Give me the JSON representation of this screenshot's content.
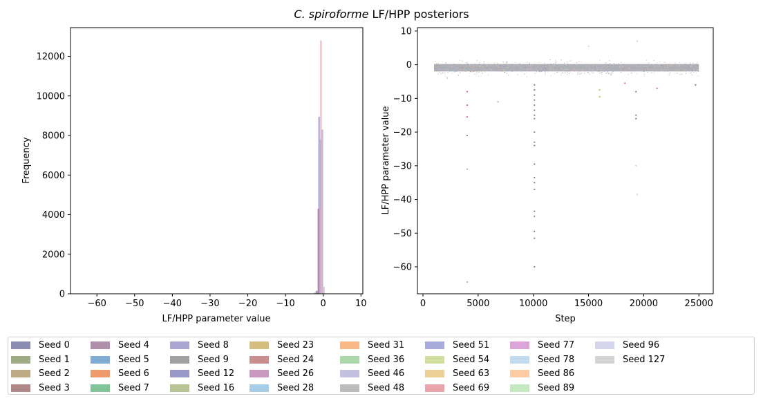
{
  "figure": {
    "title_italic": "C. spiroforme",
    "title_rest": " LF/HPP posteriors"
  },
  "chart_data": [
    {
      "type": "histogram",
      "xlabel": "LF/HPP parameter value",
      "ylabel": "Frequency",
      "xlim": [
        -67,
        10.5
      ],
      "ylim": [
        0,
        13450
      ],
      "xticks": [
        -60,
        -50,
        -40,
        -30,
        -20,
        -10,
        0,
        10
      ],
      "yticks": [
        0,
        2000,
        4000,
        6000,
        8000,
        10000,
        12000
      ],
      "grid": false,
      "bars": [
        {
          "x0": -2.0,
          "x1": -1.5,
          "value": 150,
          "color": "#5a5a8c"
        },
        {
          "x0": -1.5,
          "x1": -1.1,
          "value": 4300,
          "color": "#d04050"
        },
        {
          "x0": -1.3,
          "x1": -0.9,
          "value": 8950,
          "color": "#6a6ac0"
        },
        {
          "x0": -0.9,
          "x1": -0.5,
          "value": 7800,
          "color": "#9aa0d8"
        },
        {
          "x0": -0.8,
          "x1": -0.4,
          "value": 12800,
          "color": "#e88890"
        },
        {
          "x0": -0.4,
          "x1": 0.0,
          "value": 8300,
          "color": "#9a90c8"
        },
        {
          "x0": 0.0,
          "x1": 0.4,
          "value": 350,
          "color": "#c0a0c0"
        },
        {
          "x0": -2.4,
          "x1": -2.0,
          "value": 60,
          "color": "#c08080"
        }
      ]
    },
    {
      "type": "scatter",
      "xlabel": "Step",
      "ylabel": "LF/HPP parameter value",
      "xlim": [
        -500,
        26300
      ],
      "ylim": [
        -68,
        11
      ],
      "xticks": [
        0,
        5000,
        10000,
        15000,
        20000,
        25000
      ],
      "yticks": [
        10,
        0,
        -10,
        -20,
        -30,
        -40,
        -50,
        -60
      ],
      "grid": false,
      "band": {
        "x_start": 1000,
        "x_end": 25000,
        "y_center": -0.9,
        "y_half_width": 1.1
      },
      "outliers": [
        {
          "step": 4000,
          "value": -21,
          "color": "#5a5a8c"
        },
        {
          "step": 4000,
          "value": -31,
          "color": "#c08080"
        },
        {
          "step": 4000,
          "value": -64.5,
          "color": "#9a90c8"
        },
        {
          "step": 4000,
          "value": -15.5,
          "color": "#d04050"
        },
        {
          "step": 4000,
          "value": -12,
          "color": "#d04050"
        },
        {
          "step": 4000,
          "value": -8,
          "color": "#d04050"
        },
        {
          "step": 10100,
          "value": -60,
          "color": "#5a5a8c"
        },
        {
          "step": 10100,
          "value": -51.5,
          "color": "#5a5a8c"
        },
        {
          "step": 10100,
          "value": -49.5,
          "color": "#5a5a8c"
        },
        {
          "step": 10100,
          "value": -45,
          "color": "#5a5a8c"
        },
        {
          "step": 10100,
          "value": -43.5,
          "color": "#5a5a8c"
        },
        {
          "step": 10100,
          "value": -37,
          "color": "#5a5a8c"
        },
        {
          "step": 10100,
          "value": -35,
          "color": "#5a5a8c"
        },
        {
          "step": 10100,
          "value": -33.5,
          "color": "#5a5a8c"
        },
        {
          "step": 10100,
          "value": -29.5,
          "color": "#5a5a8c"
        },
        {
          "step": 10100,
          "value": -24,
          "color": "#5a5a8c"
        },
        {
          "step": 10100,
          "value": -23,
          "color": "#5a5a8c"
        },
        {
          "step": 10100,
          "value": -20,
          "color": "#5a5a8c"
        },
        {
          "step": 10100,
          "value": -16,
          "color": "#5a5a8c"
        },
        {
          "step": 10100,
          "value": -15,
          "color": "#5a5a8c"
        },
        {
          "step": 10100,
          "value": -13.5,
          "color": "#5a5a8c"
        },
        {
          "step": 10100,
          "value": -12,
          "color": "#5a5a8c"
        },
        {
          "step": 10100,
          "value": -10.5,
          "color": "#5a5a8c"
        },
        {
          "step": 10100,
          "value": -9,
          "color": "#5a5a8c"
        },
        {
          "step": 10100,
          "value": -7.5,
          "color": "#5a5a8c"
        },
        {
          "step": 10100,
          "value": -6,
          "color": "#5a5a8c"
        },
        {
          "step": 6800,
          "value": -11,
          "color": "#9a90c8"
        },
        {
          "step": 19300,
          "value": -15,
          "color": "#5a5a8c"
        },
        {
          "step": 19300,
          "value": -16,
          "color": "#5a5a8c"
        },
        {
          "step": 19300,
          "value": -8,
          "color": "#5a5a8c"
        },
        {
          "step": 19300,
          "value": -30,
          "color": "#c0c0d0"
        },
        {
          "step": 19400,
          "value": -38.5,
          "color": "#c0c0d0"
        },
        {
          "step": 19400,
          "value": 7,
          "color": "#c0c0d0"
        },
        {
          "step": 15000,
          "value": 5.5,
          "color": "#c0c0d0"
        },
        {
          "step": 21200,
          "value": -7,
          "color": "#d04050"
        },
        {
          "step": 16000,
          "value": -7.5,
          "color": "#c0a040"
        },
        {
          "step": 16000,
          "value": -9.5,
          "color": "#c0a040"
        },
        {
          "step": 24700,
          "value": -6,
          "color": "#5a5a8c"
        },
        {
          "step": 18300,
          "value": -5.5,
          "color": "#d04050"
        },
        {
          "step": 2200,
          "value": -4,
          "color": "#c0c0d0"
        }
      ]
    }
  ],
  "legend": {
    "items": [
      {
        "label": "Seed 0",
        "color": "#8a8bb0"
      },
      {
        "label": "Seed 1",
        "color": "#9eaa84"
      },
      {
        "label": "Seed 2",
        "color": "#bdaa84"
      },
      {
        "label": "Seed 3",
        "color": "#b08888"
      },
      {
        "label": "Seed 4",
        "color": "#b090a8"
      },
      {
        "label": "Seed 5",
        "color": "#80acd4"
      },
      {
        "label": "Seed 6",
        "color": "#ee9a6a"
      },
      {
        "label": "Seed 7",
        "color": "#80c498"
      },
      {
        "label": "Seed 8",
        "color": "#aaa4d0"
      },
      {
        "label": "Seed 9",
        "color": "#a0a0a0"
      },
      {
        "label": "Seed 12",
        "color": "#9898c8"
      },
      {
        "label": "Seed 16",
        "color": "#b8c494"
      },
      {
        "label": "Seed 23",
        "color": "#d4be80"
      },
      {
        "label": "Seed 24",
        "color": "#c88e8e"
      },
      {
        "label": "Seed 26",
        "color": "#c898c0"
      },
      {
        "label": "Seed 28",
        "color": "#a6cce8"
      },
      {
        "label": "Seed 31",
        "color": "#f8b888"
      },
      {
        "label": "Seed 36",
        "color": "#acd8ac"
      },
      {
        "label": "Seed 46",
        "color": "#c4c0e0"
      },
      {
        "label": "Seed 48",
        "color": "#bcbcbc"
      },
      {
        "label": "Seed 51",
        "color": "#a8acdc"
      },
      {
        "label": "Seed 54",
        "color": "#d0dea0"
      },
      {
        "label": "Seed 63",
        "color": "#ecd096"
      },
      {
        "label": "Seed 69",
        "color": "#e8a4a8"
      },
      {
        "label": "Seed 77",
        "color": "#dca4d8"
      },
      {
        "label": "Seed 78",
        "color": "#c0dcec"
      },
      {
        "label": "Seed 86",
        "color": "#fccca4"
      },
      {
        "label": "Seed 89",
        "color": "#c4e8c0"
      },
      {
        "label": "Seed 96",
        "color": "#d4d4ec"
      },
      {
        "label": "Seed 127",
        "color": "#d4d4d4"
      }
    ]
  }
}
